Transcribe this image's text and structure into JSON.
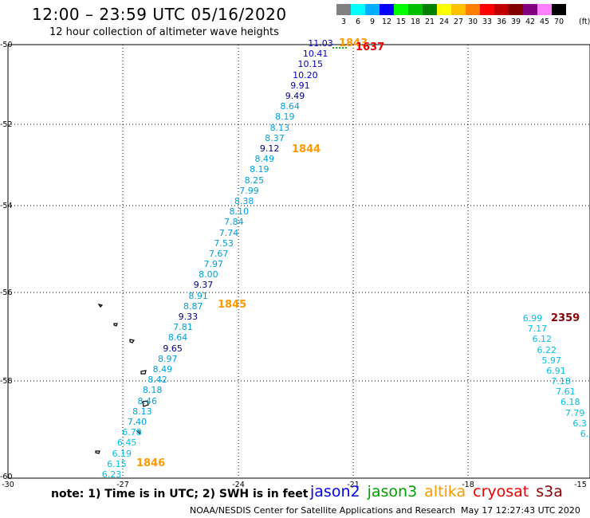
{
  "header": {
    "title": "12:00 – 23:59 UTC 05/16/2020",
    "subtitle": "12 hour collection of altimeter wave heights"
  },
  "legend": {
    "colors": [
      "#808080",
      "#00ffff",
      "#00b0ff",
      "#0000ff",
      "#00ff00",
      "#00c000",
      "#008000",
      "#ffff00",
      "#ffc000",
      "#ff8000",
      "#ff0000",
      "#c00000",
      "#800000",
      "#800080",
      "#ff80ff",
      "#000000"
    ],
    "labels": [
      "3",
      "6",
      "9",
      "12",
      "15",
      "18",
      "21",
      "24",
      "27",
      "30",
      "33",
      "36",
      "39",
      "42",
      "45",
      "70"
    ],
    "unit": "(ft)"
  },
  "axes": {
    "y_labels": [
      "-50",
      "-52",
      "-54",
      "-56",
      "-58",
      "-60"
    ],
    "x_labels": [
      "-30",
      "-27",
      "-24",
      "-21",
      "-18",
      "-15"
    ]
  },
  "track_a": {
    "observations": [
      {
        "v": "11.03",
        "c": "#0000cc"
      },
      {
        "v": "10.41",
        "c": "#0000cc"
      },
      {
        "v": "10.15",
        "c": "#0000cc"
      },
      {
        "v": "10.20",
        "c": "#0000cc"
      },
      {
        "v": "9.91",
        "c": "#0000cc"
      },
      {
        "v": "9.49",
        "c": "#000080"
      },
      {
        "v": "8.64",
        "c": "#00a0e0"
      },
      {
        "v": "8.19",
        "c": "#00a0e0"
      },
      {
        "v": "8.13",
        "c": "#00a0e0"
      },
      {
        "v": "8.37",
        "c": "#00a0e0"
      },
      {
        "v": "9.12",
        "c": "#000080"
      },
      {
        "v": "8.49",
        "c": "#00a0e0"
      },
      {
        "v": "8.19",
        "c": "#00a0e0"
      },
      {
        "v": "8.25",
        "c": "#00a0e0"
      },
      {
        "v": "7.99",
        "c": "#00a0e0"
      },
      {
        "v": "8.38",
        "c": "#00a0e0"
      },
      {
        "v": "8.10",
        "c": "#00a0e0"
      },
      {
        "v": "7.84",
        "c": "#00a0e0"
      },
      {
        "v": "7.74",
        "c": "#00a0e0"
      },
      {
        "v": "7.53",
        "c": "#00a0e0"
      },
      {
        "v": "7.67",
        "c": "#00a0e0"
      },
      {
        "v": "7.97",
        "c": "#00a0e0"
      },
      {
        "v": "8.00",
        "c": "#00a0e0"
      },
      {
        "v": "9.37",
        "c": "#000080"
      },
      {
        "v": "8.91",
        "c": "#00a0e0"
      },
      {
        "v": "8.87",
        "c": "#00a0e0"
      },
      {
        "v": "9.33",
        "c": "#000080"
      },
      {
        "v": "7.81",
        "c": "#00a0e0"
      },
      {
        "v": "8.64",
        "c": "#00a0e0"
      },
      {
        "v": "9.65",
        "c": "#000080"
      },
      {
        "v": "8.97",
        "c": "#00a0e0"
      },
      {
        "v": "8.49",
        "c": "#00a0e0"
      },
      {
        "v": "8.42",
        "c": "#00a0e0"
      },
      {
        "v": "8.18",
        "c": "#00a0e0"
      },
      {
        "v": "8.46",
        "c": "#00a0e0"
      },
      {
        "v": "8.13",
        "c": "#00a0e0"
      },
      {
        "v": "7.40",
        "c": "#00a0e0"
      },
      {
        "v": "6.78",
        "c": "#00c0f0"
      },
      {
        "v": "6.45",
        "c": "#00c0f0"
      },
      {
        "v": "6.19",
        "c": "#00c0f0"
      },
      {
        "v": "6.15",
        "c": "#00c0f0"
      },
      {
        "v": "6.23",
        "c": "#00c0f0"
      }
    ]
  },
  "track_b": {
    "observations": [
      {
        "v": "6.99",
        "c": "#00c0f0"
      },
      {
        "v": "7.17",
        "c": "#00c0f0"
      },
      {
        "v": "6.12",
        "c": "#00c0f0"
      },
      {
        "v": "6.22",
        "c": "#00c0f0"
      },
      {
        "v": "5.97",
        "c": "#00c0f0"
      },
      {
        "v": "6.91",
        "c": "#00c0f0"
      },
      {
        "v": "7.18",
        "c": "#00c0f0"
      },
      {
        "v": "7.61",
        "c": "#00c0f0"
      },
      {
        "v": "6.18",
        "c": "#00c0f0"
      },
      {
        "v": "7.79",
        "c": "#00c0f0"
      },
      {
        "v": "6.3",
        "c": "#00c0f0"
      },
      {
        "v": "6.",
        "c": "#00c0f0"
      }
    ]
  },
  "time_labels": [
    {
      "text": "1843",
      "color": "#ff9900"
    },
    {
      "text": "1637",
      "color": "#ee0000"
    },
    {
      "text": "1844",
      "color": "#ff9900"
    },
    {
      "text": "1845",
      "color": "#ff9900"
    },
    {
      "text": "1846",
      "color": "#ff9900"
    },
    {
      "text": "2359",
      "color": "#8b0000"
    }
  ],
  "note": "note: 1) Time is in UTC; 2) SWH is in feet",
  "satellites": [
    {
      "name": "jason2",
      "color": "#0000ee"
    },
    {
      "name": "jason3",
      "color": "#00a000"
    },
    {
      "name": "altika",
      "color": "#ff9900"
    },
    {
      "name": "cryosat",
      "color": "#ee0000"
    },
    {
      "name": "s3a",
      "color": "#8b0000"
    }
  ],
  "credit": "NOAA/NESDIS Center for Satellite Applications and Research",
  "timestamp": "May 17 12:27:43 UTC 2020"
}
